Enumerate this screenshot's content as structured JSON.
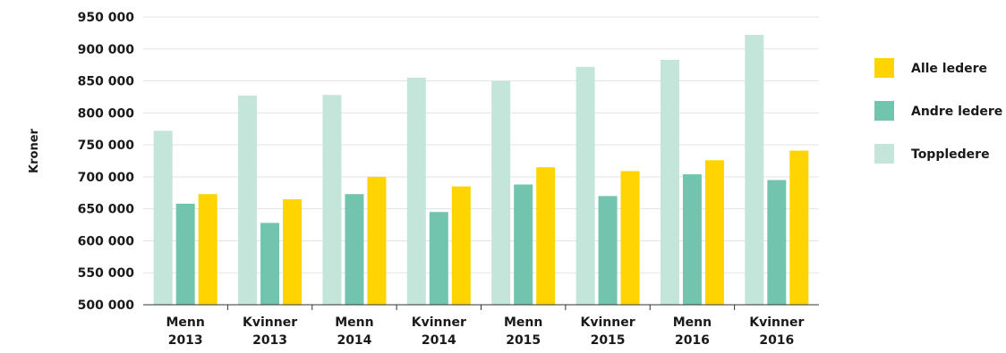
{
  "chart_data": {
    "type": "bar",
    "categories": [
      [
        "Menn",
        "2013"
      ],
      [
        "Kvinner",
        "2013"
      ],
      [
        "Menn",
        "2014"
      ],
      [
        "Kvinner",
        "2014"
      ],
      [
        "Menn",
        "2015"
      ],
      [
        "Kvinner",
        "2015"
      ],
      [
        "Menn",
        "2016"
      ],
      [
        "Kvinner",
        "2016"
      ]
    ],
    "series": [
      {
        "name": "Toppledere",
        "color": "#c3e5da",
        "values": [
          772000,
          827000,
          828000,
          855000,
          850000,
          872000,
          883000,
          922000
        ]
      },
      {
        "name": "Andre ledere",
        "color": "#72c4ae",
        "values": [
          658000,
          628000,
          673000,
          645000,
          688000,
          670000,
          704000,
          695000
        ]
      },
      {
        "name": "Alle ledere",
        "color": "#ffd400",
        "values": [
          673000,
          665000,
          700000,
          685000,
          715000,
          709000,
          726000,
          741000
        ]
      }
    ],
    "legend_order": [
      "Alle ledere",
      "Andre ledere",
      "Toppledere"
    ],
    "legend_position": "right",
    "ylabel": "Kroner",
    "ylim": [
      500000,
      950000
    ],
    "yticks": [
      500000,
      550000,
      600000,
      650000,
      700000,
      750000,
      800000,
      850000,
      900000,
      950000
    ],
    "ytick_labels": [
      "500 000",
      "550 000",
      "600 000",
      "650 000",
      "700 000",
      "750 000",
      "800 000",
      "850 000",
      "900 000",
      "950 000"
    ],
    "grid": true
  }
}
